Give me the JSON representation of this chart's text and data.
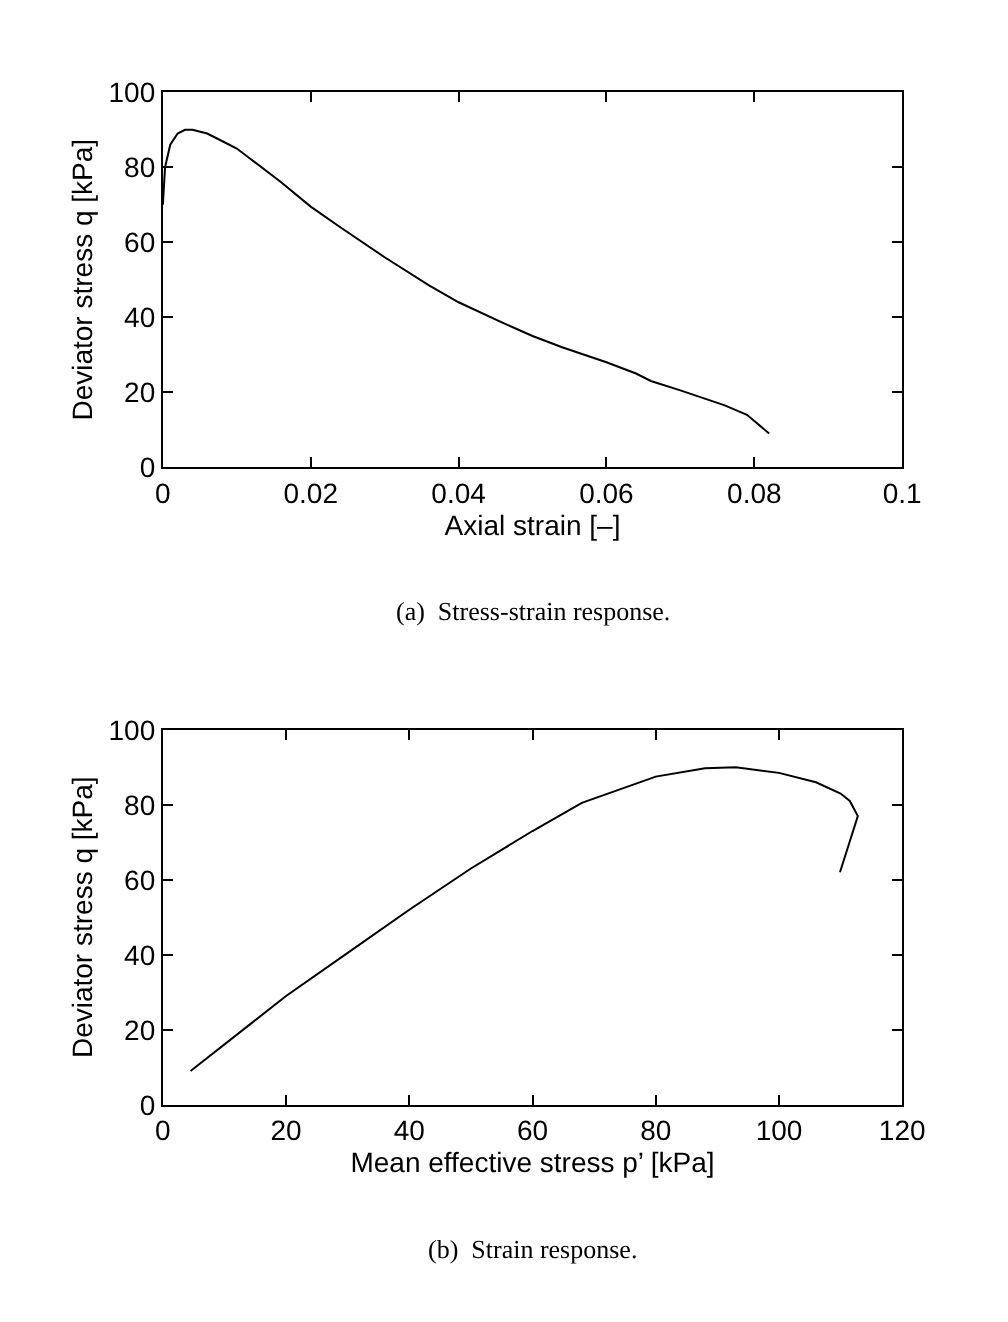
{
  "chart_data": [
    {
      "type": "line",
      "xlabel": "Axial strain [–]",
      "ylabel": "Deviator stress q [kPa]",
      "annotations": [
        "(a)  Stress-strain response."
      ],
      "x": [
        0,
        0.0003,
        0.001,
        0.002,
        0.003,
        0.004,
        0.006,
        0.008,
        0.01,
        0.012,
        0.016,
        0.02,
        0.024,
        0.03,
        0.036,
        0.04,
        0.046,
        0.05,
        0.054,
        0.06,
        0.064,
        0.066,
        0.07,
        0.076,
        0.079,
        0.082
      ],
      "series": [
        {
          "color": "#000000",
          "values": [
            70,
            80,
            86,
            89,
            90,
            90,
            89,
            87,
            85,
            82,
            76,
            69.5,
            64,
            56,
            48.5,
            44,
            38.5,
            35,
            32,
            28,
            25,
            23,
            20.5,
            16.5,
            14,
            9
          ]
        }
      ],
      "xlim": [
        0,
        0.1
      ],
      "xticks": [
        0,
        0.02,
        0.04,
        0.06,
        0.08,
        0.1
      ],
      "ylim": [
        0,
        100
      ],
      "yticks": [
        0,
        20,
        40,
        60,
        80,
        100
      ],
      "marker": "none",
      "line_style": "solid"
    },
    {
      "type": "line",
      "xlabel": "Mean effective stress p’ [kPa]",
      "ylabel": "Deviator stress q [kPa]",
      "annotations": [
        "(b)  Strain response."
      ],
      "x": [
        4.5,
        20,
        30,
        40,
        50,
        60,
        68,
        80,
        88,
        93,
        100,
        106,
        110,
        111.5,
        112.8,
        109.9
      ],
      "series": [
        {
          "color": "#000000",
          "values": [
            9,
            29,
            40.5,
            52,
            63,
            73,
            80.5,
            87.5,
            89.7,
            90,
            88.5,
            86,
            83,
            81,
            77,
            62
          ]
        }
      ],
      "xlim": [
        0,
        120
      ],
      "xticks": [
        0,
        20,
        40,
        60,
        80,
        100,
        120
      ],
      "ylim": [
        0,
        100
      ],
      "yticks": [
        0,
        20,
        40,
        60,
        80,
        100
      ],
      "marker": "none",
      "line_style": "solid"
    }
  ]
}
